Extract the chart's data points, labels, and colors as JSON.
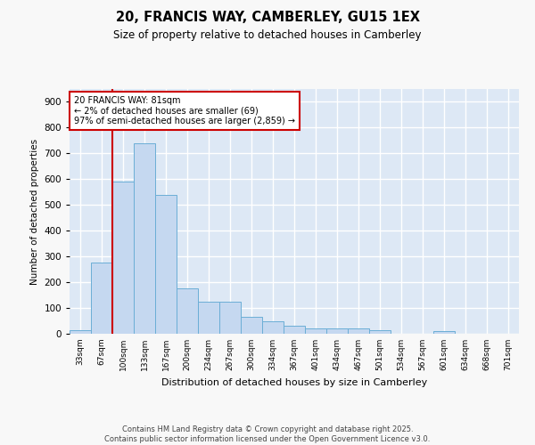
{
  "title_line1": "20, FRANCIS WAY, CAMBERLEY, GU15 1EX",
  "title_line2": "Size of property relative to detached houses in Camberley",
  "xlabel": "Distribution of detached houses by size in Camberley",
  "ylabel": "Number of detached properties",
  "categories": [
    "33sqm",
    "67sqm",
    "100sqm",
    "133sqm",
    "167sqm",
    "200sqm",
    "234sqm",
    "267sqm",
    "300sqm",
    "334sqm",
    "367sqm",
    "401sqm",
    "434sqm",
    "467sqm",
    "501sqm",
    "534sqm",
    "567sqm",
    "601sqm",
    "634sqm",
    "668sqm",
    "701sqm"
  ],
  "values": [
    15,
    275,
    590,
    740,
    540,
    175,
    125,
    125,
    65,
    50,
    30,
    20,
    20,
    20,
    15,
    0,
    0,
    10,
    0,
    0,
    0
  ],
  "bar_color": "#c5d8f0",
  "bar_edge_color": "#6baed6",
  "background_color": "#dde8f5",
  "grid_color": "#ffffff",
  "vline_color": "#cc0000",
  "vline_pos": 1.5,
  "annotation_text": "20 FRANCIS WAY: 81sqm\n← 2% of detached houses are smaller (69)\n97% of semi-detached houses are larger (2,859) →",
  "annotation_box_facecolor": "#ffffff",
  "annotation_box_edgecolor": "#cc0000",
  "footer_text": "Contains HM Land Registry data © Crown copyright and database right 2025.\nContains public sector information licensed under the Open Government Licence v3.0.",
  "fig_facecolor": "#f8f8f8",
  "ylim": [
    0,
    950
  ],
  "yticks": [
    0,
    100,
    200,
    300,
    400,
    500,
    600,
    700,
    800,
    900
  ]
}
